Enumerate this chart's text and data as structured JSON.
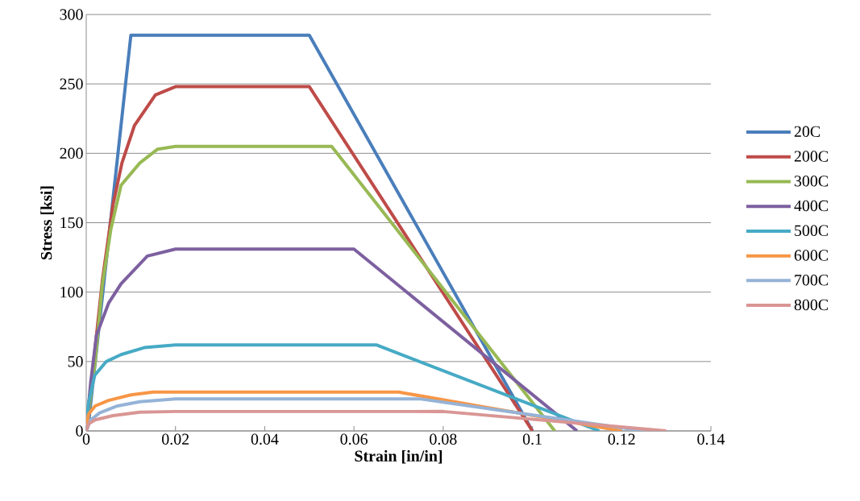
{
  "chart_data": {
    "type": "line",
    "xlabel": "Strain [in/in]",
    "ylabel": "Stress [ksi]",
    "xlim": [
      0,
      0.14
    ],
    "xticks": [
      0,
      0.02,
      0.04,
      0.06,
      0.08,
      0.1,
      0.12,
      0.14
    ],
    "ylim": [
      0,
      300
    ],
    "yticks": [
      0,
      50,
      100,
      150,
      200,
      250,
      300
    ],
    "grid": "y",
    "legend": "right",
    "marker": "none",
    "line_style": "solid",
    "series": [
      {
        "name": "20C",
        "color": "#4a7ebb",
        "x": [
          0,
          0.0005,
          0.01,
          0.05,
          0.1
        ],
        "values": [
          0,
          5,
          285,
          285,
          0
        ]
      },
      {
        "name": "200C",
        "color": "#be4b48",
        "x": [
          0,
          0.002,
          0.0036,
          0.006,
          0.008,
          0.0108,
          0.0155,
          0.02,
          0.05,
          0.1
        ],
        "values": [
          0,
          60,
          108,
          163,
          193,
          220,
          242,
          248,
          248,
          0
        ]
      },
      {
        "name": "300C",
        "color": "#98b954",
        "x": [
          0,
          0.002,
          0.0036,
          0.0055,
          0.0078,
          0.012,
          0.016,
          0.02,
          0.055,
          0.105
        ],
        "values": [
          0,
          50,
          105,
          145,
          177,
          193,
          203,
          205,
          205,
          0
        ]
      },
      {
        "name": "400C",
        "color": "#7d60a0",
        "x": [
          0,
          0.001,
          0.0023,
          0.005,
          0.0078,
          0.0137,
          0.02,
          0.06,
          0.11
        ],
        "values": [
          0,
          35,
          69,
          92,
          106,
          126,
          131,
          131,
          0
        ]
      },
      {
        "name": "500C",
        "color": "#46aac5",
        "x": [
          0,
          0.0005,
          0.0019,
          0.0045,
          0.0078,
          0.013,
          0.02,
          0.065,
          0.115
        ],
        "values": [
          0,
          20,
          40,
          50,
          55,
          60,
          62,
          62,
          0
        ]
      },
      {
        "name": "600C",
        "color": "#f79646",
        "x": [
          0,
          0.0005,
          0.002,
          0.005,
          0.01,
          0.015,
          0.02,
          0.07,
          0.12
        ],
        "values": [
          0,
          12,
          18,
          22,
          26,
          28,
          28,
          28,
          0
        ]
      },
      {
        "name": "700C",
        "color": "#95b3d7",
        "x": [
          0,
          0.001,
          0.003,
          0.007,
          0.012,
          0.02,
          0.075,
          0.125
        ],
        "values": [
          0,
          8,
          13,
          18,
          21,
          23,
          23,
          0
        ]
      },
      {
        "name": "800C",
        "color": "#d99694",
        "x": [
          0,
          0.0005,
          0.002,
          0.006,
          0.012,
          0.02,
          0.08,
          0.13
        ],
        "values": [
          0,
          5,
          8,
          11,
          13.5,
          14,
          14,
          0
        ]
      }
    ]
  }
}
